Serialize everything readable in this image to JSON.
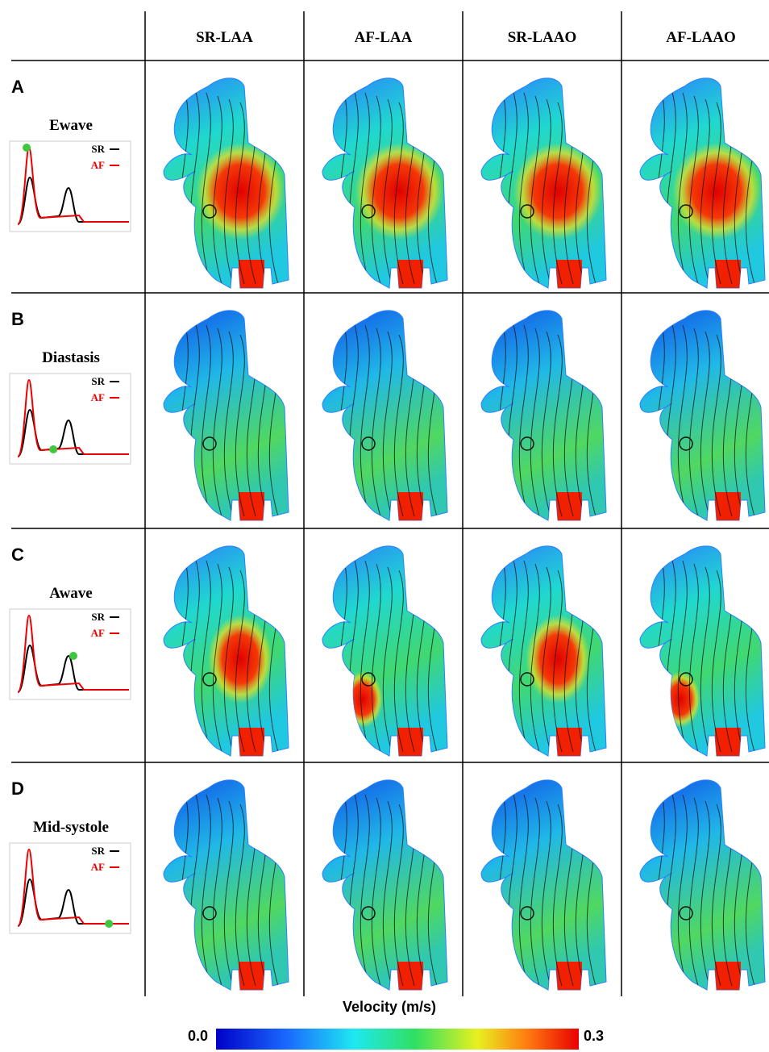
{
  "columns": [
    "SR-LAA",
    "AF-LAA",
    "SR-LAAO",
    "AF-LAAO"
  ],
  "rows": [
    {
      "letter": "A",
      "phase": "Ewave"
    },
    {
      "letter": "B",
      "phase": "Diastasis"
    },
    {
      "letter": "C",
      "phase": "Awave"
    },
    {
      "letter": "D",
      "phase": "Mid-systole"
    }
  ],
  "inset_legend": {
    "sr": "SR",
    "af": "AF"
  },
  "colorbar": {
    "title": "Velocity (m/s)",
    "min": "0.0",
    "max": "0.3"
  }
}
